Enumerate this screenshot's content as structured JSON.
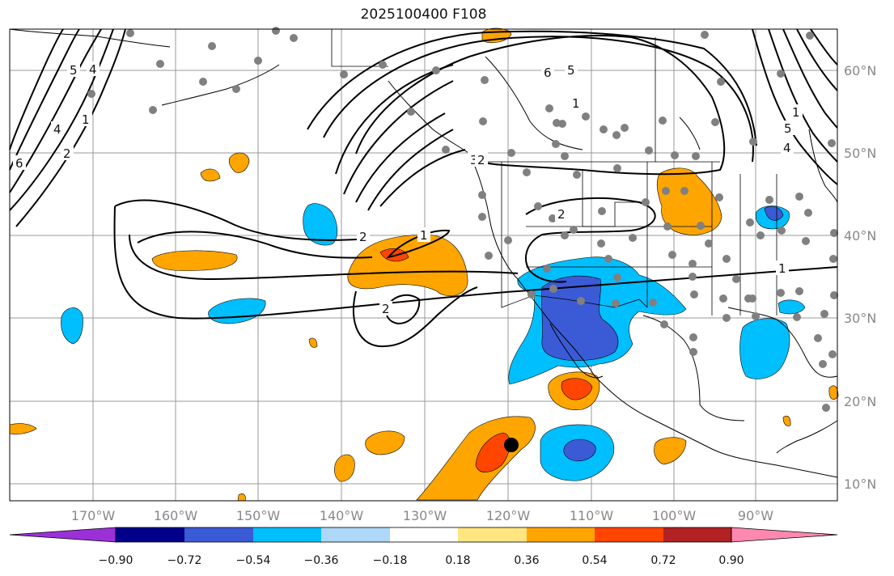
{
  "title": "2025100400 F108",
  "map": {
    "lon_ticks": [
      "170°W",
      "160°W",
      "150°W",
      "140°W",
      "130°W",
      "120°W",
      "110°W",
      "100°W",
      "90°W"
    ],
    "lat_ticks": [
      "60°N",
      "50°N",
      "40°N",
      "30°N",
      "20°N",
      "10°N"
    ],
    "contour_labels": [
      "2",
      "1",
      "2",
      "2",
      "1",
      "6",
      "5",
      "1",
      "5",
      "4",
      "3",
      "4",
      "1",
      "6",
      "5",
      "4",
      "2",
      "2",
      "1"
    ]
  },
  "colorbar": {
    "labels": [
      "−0.90",
      "−0.72",
      "−0.54",
      "−0.36",
      "−0.18",
      "0.18",
      "0.36",
      "0.54",
      "0.72",
      "0.90"
    ],
    "colors": [
      "#9b30d9",
      "#00008b",
      "#3b5bd6",
      "#00bfff",
      "#add8f7",
      "#ffffff",
      "#ffe680",
      "#ffa500",
      "#ff4500",
      "#b22222",
      "#ff88b0"
    ]
  }
}
